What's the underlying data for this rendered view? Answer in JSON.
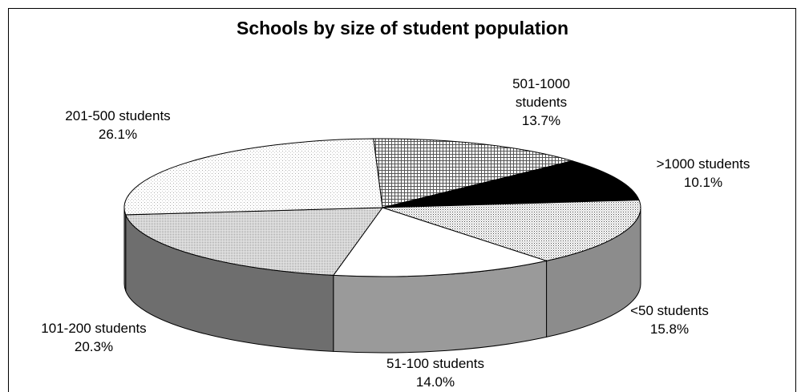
{
  "chart_data": {
    "type": "pie",
    "title": "Schools by size of student population",
    "slices": [
      {
        "label_lines": [
          "501-1000",
          "students"
        ],
        "value_text": "13.7%",
        "value": 13.7,
        "fill": "crosshatch"
      },
      {
        "label_lines": [
          ">1000 students"
        ],
        "value_text": "10.1%",
        "value": 10.1,
        "fill": "#000000"
      },
      {
        "label_lines": [
          "<50 students"
        ],
        "value_text": "15.8%",
        "value": 15.8,
        "fill": "dots"
      },
      {
        "label_lines": [
          "51-100 students"
        ],
        "value_text": "14.0%",
        "value": 14.0,
        "fill": "#ffffff"
      },
      {
        "label_lines": [
          "101-200 students"
        ],
        "value_text": "20.3%",
        "value": 20.3,
        "fill": "dense-dots"
      },
      {
        "label_lines": [
          "201-500 students"
        ],
        "value_text": "26.1%",
        "value": 26.1,
        "fill": "light-dots"
      }
    ],
    "style": "3d-pie",
    "legend": "none"
  }
}
